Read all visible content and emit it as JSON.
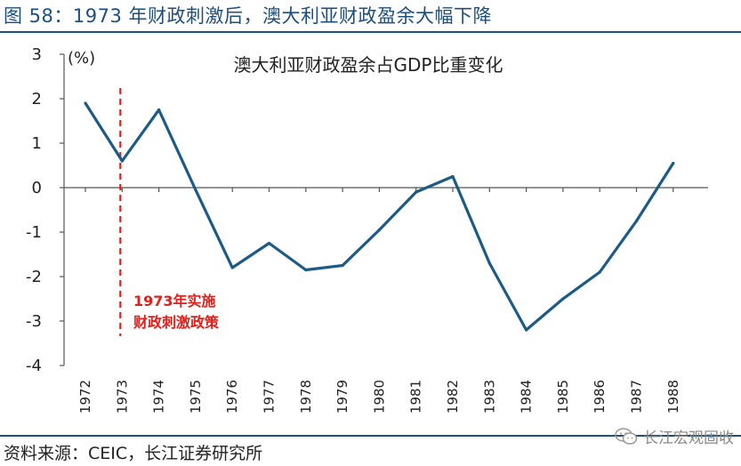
{
  "figure": {
    "title": "图 58：1973 年财政刺激后，澳大利亚财政盈余大幅下降",
    "source": "资料来源：CEIC，长江证券研究所",
    "watermark": "长江宏观固收",
    "watermark_icon": "wechat-icon"
  },
  "chart_data": {
    "type": "line",
    "title": "澳大利亚财政盈余占GDP比重变化",
    "ylabel": "(%)",
    "xlabel": "",
    "ylim": [
      -4,
      3
    ],
    "yticks": [
      3,
      2,
      1,
      0,
      -1,
      -2,
      -3,
      -4
    ],
    "x": [
      "1972",
      "1973",
      "1974",
      "1975",
      "1976",
      "1977",
      "1978",
      "1979",
      "1980",
      "1981",
      "1982",
      "1983",
      "1984",
      "1985",
      "1986",
      "1987",
      "1988"
    ],
    "series": [
      {
        "values": [
          1.9,
          0.6,
          1.75,
          -0.05,
          -1.8,
          -1.25,
          -1.85,
          -1.75,
          -0.95,
          -0.1,
          0.25,
          -1.7,
          -3.2,
          -2.5,
          -1.9,
          -0.75,
          0.55
        ],
        "color": "#1b5b86"
      }
    ],
    "grid": false,
    "annotation": {
      "x": "1973",
      "lines": [
        "1973年实施",
        "财政刺激政策"
      ],
      "color": "#e0201b"
    }
  }
}
